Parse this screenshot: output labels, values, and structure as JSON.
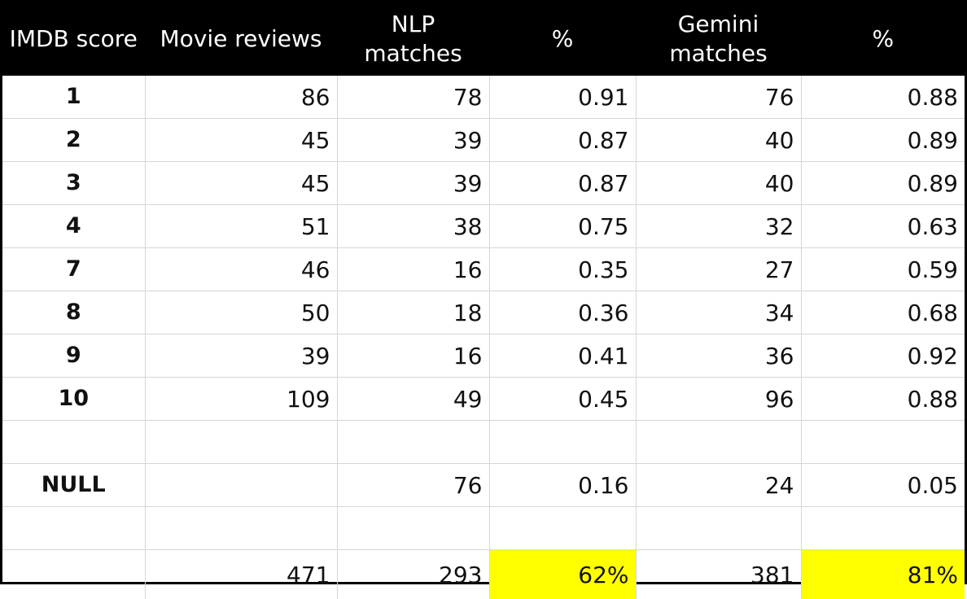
{
  "headers": [
    "IMDB score",
    "Movie reviews",
    "NLP matches",
    "%",
    "Gemini matches",
    "%"
  ],
  "rows": [
    {
      "score": "1",
      "reviews": "86",
      "nlp": "78",
      "nlp_pct": "0.91",
      "gemini": "76",
      "gemini_pct": "0.88"
    },
    {
      "score": "2",
      "reviews": "45",
      "nlp": "39",
      "nlp_pct": "0.87",
      "gemini": "40",
      "gemini_pct": "0.89"
    },
    {
      "score": "3",
      "reviews": "45",
      "nlp": "39",
      "nlp_pct": "0.87",
      "gemini": "40",
      "gemini_pct": "0.89"
    },
    {
      "score": "4",
      "reviews": "51",
      "nlp": "38",
      "nlp_pct": "0.75",
      "gemini": "32",
      "gemini_pct": "0.63"
    },
    {
      "score": "7",
      "reviews": "46",
      "nlp": "16",
      "nlp_pct": "0.35",
      "gemini": "27",
      "gemini_pct": "0.59"
    },
    {
      "score": "8",
      "reviews": "50",
      "nlp": "18",
      "nlp_pct": "0.36",
      "gemini": "34",
      "gemini_pct": "0.68"
    },
    {
      "score": "9",
      "reviews": "39",
      "nlp": "16",
      "nlp_pct": "0.41",
      "gemini": "36",
      "gemini_pct": "0.92"
    },
    {
      "score": "10",
      "reviews": "109",
      "nlp": "49",
      "nlp_pct": "0.45",
      "gemini": "96",
      "gemini_pct": "0.88"
    },
    {
      "score": "",
      "reviews": "",
      "nlp": "",
      "nlp_pct": "",
      "gemini": "",
      "gemini_pct": ""
    },
    {
      "score": "NULL",
      "reviews": "",
      "nlp": "76",
      "nlp_pct": "0.16",
      "gemini": "24",
      "gemini_pct": "0.05"
    },
    {
      "score": "",
      "reviews": "",
      "nlp": "",
      "nlp_pct": "",
      "gemini": "",
      "gemini_pct": ""
    }
  ],
  "totals": {
    "score": "",
    "reviews": "471",
    "nlp": "293",
    "nlp_pct": "62%",
    "gemini": "381",
    "gemini_pct": "81%"
  },
  "colors": {
    "header_bg": "#000000",
    "header_text": "#ffffff",
    "highlight": "#ffff00",
    "grid": "#d6d6d6"
  }
}
